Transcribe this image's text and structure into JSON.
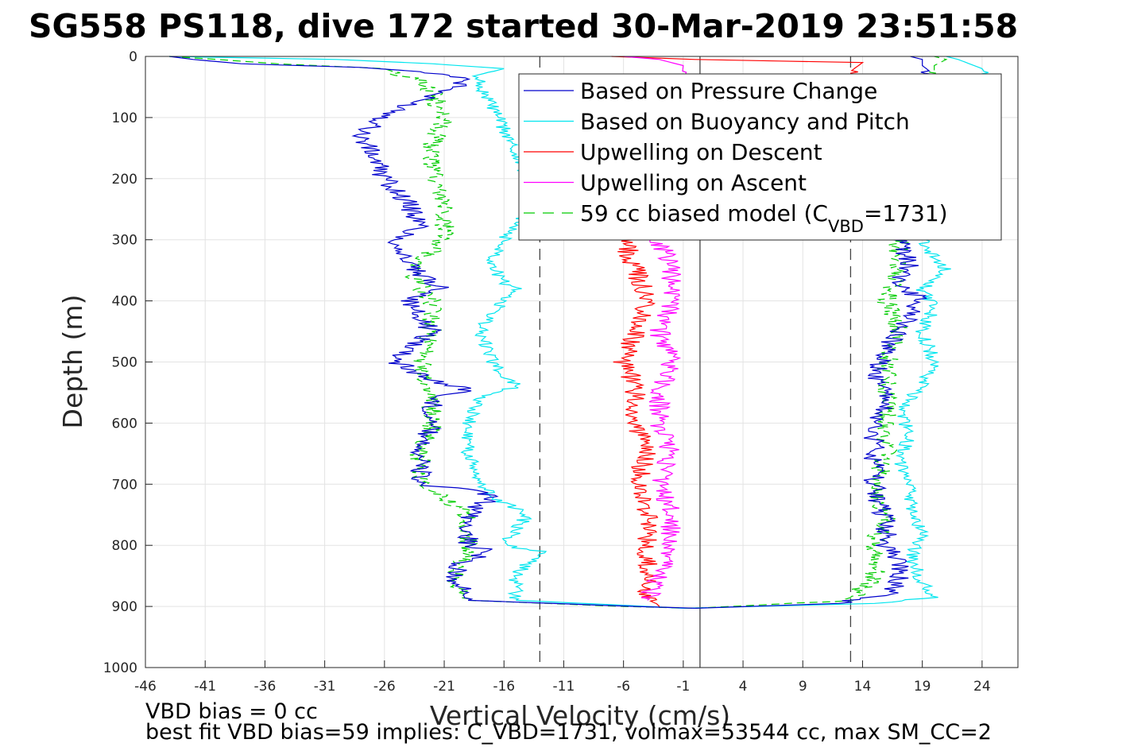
{
  "chart_data": {
    "type": "line",
    "title": "SG558 PS118, dive 172 started 30-Mar-2019 23:51:58",
    "xlabel": "Vertical Velocity (cm/s)",
    "ylabel": "Depth (m)",
    "xlim": [
      -46,
      27
    ],
    "ylim": [
      0,
      1000
    ],
    "y_reversed": true,
    "grid": true,
    "x_ticks": [
      "-46",
      "-41",
      "-36",
      "-31",
      "-26",
      "-21",
      "-16",
      "-11",
      "-6",
      "-1",
      "4",
      "9",
      "14",
      "19",
      "24"
    ],
    "y_ticks": [
      "0",
      "100",
      "200",
      "300",
      "400",
      "500",
      "600",
      "700",
      "800",
      "900",
      "1000"
    ],
    "reference_lines": [
      {
        "x": -13,
        "style": "dashed",
        "color": "#444444"
      },
      {
        "x": 0.4,
        "style": "solid",
        "color": "#444444"
      },
      {
        "x": 13,
        "style": "dashed",
        "color": "#444444"
      }
    ],
    "legend": {
      "position": "top-right"
    },
    "series": [
      {
        "name": "Based on Pressure Change",
        "color": "#0000cc",
        "style": "solid",
        "descent": {
          "depth": [
            0,
            5,
            12,
            18,
            25,
            35,
            50,
            70,
            100,
            130,
            160,
            200,
            240,
            280,
            300,
            340,
            360,
            380,
            400,
            430,
            450,
            480,
            500,
            530,
            545,
            560,
            600,
            650,
            700,
            710,
            720,
            750,
            800,
            810,
            830,
            860,
            890
          ],
          "v": [
            -44,
            -42,
            -38,
            -28,
            -23,
            -19,
            -20,
            -23,
            -26,
            -28,
            -27,
            -26,
            -24,
            -23,
            -25,
            -24,
            -23,
            -21,
            -24,
            -23,
            -22,
            -24,
            -25,
            -22,
            -19,
            -22,
            -22,
            -23,
            -23,
            -19,
            -17,
            -19,
            -19,
            -17,
            -20,
            -20,
            -19
          ]
        },
        "turn": {
          "depth": [
            890,
            900,
            903
          ],
          "v": [
            -19,
            -5,
            0
          ]
        },
        "ascent": {
          "depth": [
            903,
            895,
            880,
            860,
            830,
            800,
            760,
            720,
            680,
            640,
            600,
            560,
            520,
            480,
            450,
            420,
            400,
            370,
            340,
            300,
            250,
            200,
            150,
            100,
            60,
            30,
            15,
            5,
            0
          ],
          "v": [
            0,
            12,
            16,
            17,
            17,
            16,
            16,
            15,
            15,
            15,
            15,
            16,
            15,
            16,
            17,
            18,
            19,
            17,
            18,
            17,
            18,
            19,
            20,
            21,
            21,
            20,
            19,
            19,
            18
          ]
        }
      },
      {
        "name": "Based on Buoyancy and Pitch",
        "color": "#00e5ee",
        "style": "solid",
        "descent": {
          "depth": [
            0,
            5,
            12,
            20,
            30,
            50,
            80,
            120,
            160,
            200,
            250,
            300,
            340,
            370,
            380,
            400,
            420,
            450,
            500,
            540,
            560,
            600,
            650,
            700,
            720,
            750,
            800,
            810,
            850,
            890
          ],
          "v": [
            -44,
            -30,
            -22,
            -16,
            -18,
            -18,
            -17,
            -16,
            -15,
            -14,
            -14,
            -16,
            -17,
            -16,
            -15,
            -16,
            -17,
            -18,
            -17,
            -15,
            -18,
            -19,
            -19,
            -18,
            -17,
            -14,
            -16,
            -13,
            -15,
            -15
          ]
        },
        "turn": {
          "depth": [
            890,
            898,
            903
          ],
          "v": [
            -15,
            -6,
            -1
          ]
        },
        "ascent": {
          "depth": [
            903,
            895,
            885,
            860,
            820,
            780,
            740,
            700,
            660,
            620,
            580,
            540,
            500,
            450,
            410,
            380,
            350,
            330,
            300,
            200,
            100,
            50,
            20,
            5,
            0
          ],
          "v": [
            -1,
            15,
            20,
            19,
            18,
            19,
            18,
            18,
            17,
            18,
            17,
            19,
            20,
            19,
            20,
            19,
            21,
            20,
            19,
            23,
            24,
            25,
            24,
            22,
            21
          ]
        }
      },
      {
        "name": "Upwelling on Descent",
        "color": "#ff0000",
        "style": "solid",
        "descent": {
          "depth": [
            0,
            5,
            10,
            300,
            350,
            400,
            450,
            500,
            540,
            600,
            650,
            700,
            750,
            800,
            850,
            880,
            900
          ],
          "v": [
            -7,
            0,
            14,
            -6,
            -5,
            -4,
            -5,
            -6,
            -5,
            -5,
            -4,
            -5,
            -4,
            -4,
            -4,
            -4,
            -3
          ]
        }
      },
      {
        "name": "Upwelling on Ascent",
        "color": "#ff00ff",
        "style": "solid",
        "ascent": {
          "depth": [
            0,
            5,
            15,
            300,
            350,
            400,
            450,
            500,
            550,
            600,
            650,
            700,
            750,
            800,
            850,
            890
          ],
          "v": [
            -6,
            -3,
            -1,
            -3,
            -2,
            -2,
            -3,
            -2,
            -3,
            -3,
            -2,
            -3,
            -2,
            -2,
            -3,
            -4
          ]
        }
      },
      {
        "name": "59 cc biased model (C",
        "name_sub": "VBD",
        "name_suffix": "=1731)",
        "color": "#00cc00",
        "style": "dashed",
        "descent": {
          "depth": [
            0,
            5,
            12,
            20,
            40,
            60,
            100,
            150,
            200,
            250,
            300,
            350,
            400,
            450,
            500,
            550,
            600,
            650,
            700,
            720,
            750,
            800,
            850,
            890
          ],
          "v": [
            -44,
            -40,
            -35,
            -26,
            -23,
            -22,
            -21,
            -22,
            -22,
            -21,
            -21,
            -24,
            -22,
            -22,
            -23,
            -22,
            -22,
            -23,
            -23,
            -21,
            -19,
            -19,
            -20,
            -19
          ]
        },
        "turn": {
          "depth": [
            890,
            900,
            903
          ],
          "v": [
            -19,
            -6,
            0
          ]
        },
        "ascent": {
          "depth": [
            903,
            890,
            850,
            800,
            750,
            700,
            650,
            600,
            550,
            500,
            450,
            400,
            350,
            320,
            300,
            200,
            100,
            50,
            15,
            5,
            0
          ],
          "v": [
            0,
            13,
            15,
            15,
            16,
            15,
            16,
            16,
            16,
            16,
            17,
            16,
            17,
            17,
            17,
            19,
            21,
            20,
            20,
            21,
            20
          ]
        }
      }
    ]
  },
  "notes": {
    "line1": "VBD bias = 0 cc",
    "line2": "best fit VBD bias=59 implies: C_VBD=1731, volmax=53544 cc, max SM_CC=2"
  }
}
